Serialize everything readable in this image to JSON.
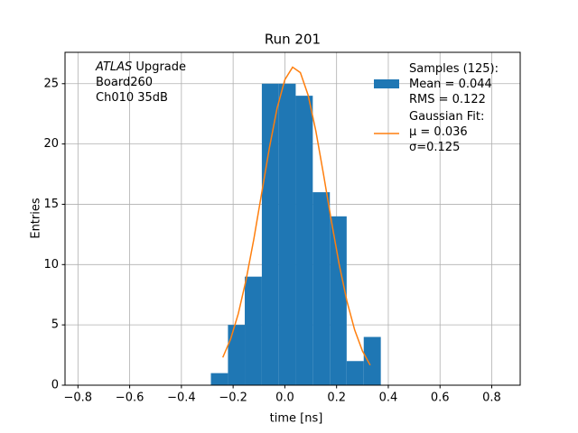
{
  "chart_data": {
    "type": "histogram",
    "title": "Run 201",
    "xlabel": "time [ns]",
    "ylabel": "Entries",
    "annotation_emph": "ATLAS",
    "annotation": "Upgrade\nBoard260\nCh010 35dB",
    "bins": [
      -0.286,
      -0.22,
      -0.155,
      -0.089,
      -0.023,
      0.042,
      0.108,
      0.174,
      0.239,
      0.305,
      0.371
    ],
    "counts": [
      1,
      5,
      9,
      25,
      25,
      24,
      16,
      14,
      2,
      4
    ],
    "name": "Samples (125):\nMean = 0.044\nRMS = 0.122",
    "color": "#1f77b4",
    "fit": {
      "type": "line",
      "name": "Gaussian Fit:\nμ = 0.036\nσ=0.125",
      "color": "#ff7f0e",
      "x": [
        -0.24,
        -0.21,
        -0.18,
        -0.15,
        -0.12,
        -0.09,
        -0.06,
        -0.03,
        0.0,
        0.03,
        0.06,
        0.09,
        0.12,
        0.15,
        0.18,
        0.21,
        0.24,
        0.27,
        0.3,
        0.33
      ],
      "y": [
        2.3,
        3.81,
        5.93,
        8.73,
        12.11,
        15.88,
        19.65,
        22.97,
        25.33,
        26.37,
        25.92,
        24.05,
        21.06,
        17.42,
        13.6,
        10.02,
        6.97,
        4.58,
        2.84,
        1.66
      ]
    },
    "xlim": [
      -0.85,
      0.91
    ],
    "ylim": [
      0,
      27.6
    ],
    "xticks": [
      {
        "value": -0.8,
        "label": "−0.8"
      },
      {
        "value": -0.6,
        "label": "−0.6"
      },
      {
        "value": -0.4,
        "label": "−0.4"
      },
      {
        "value": -0.2,
        "label": "−0.2"
      },
      {
        "value": 0,
        "label": "0.0"
      },
      0.2,
      0.4,
      0.6,
      0.8
    ],
    "yticks": [
      0,
      5,
      10,
      15,
      20,
      25
    ],
    "grid": true
  }
}
